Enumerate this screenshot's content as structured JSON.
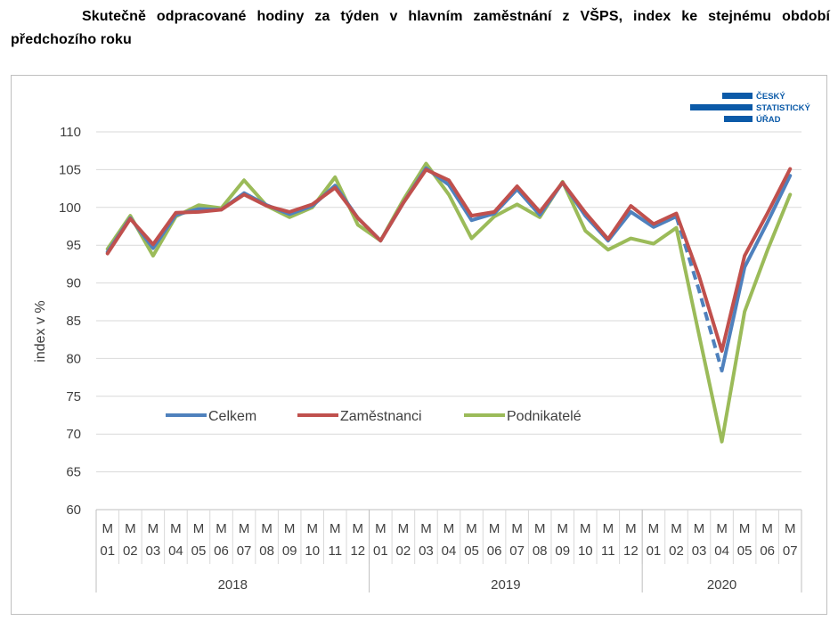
{
  "title": "Skutečně odpracované hodiny za týden v hlavním zaměstnání z VŠPS, index ke stejnému období předchozího roku",
  "logo": {
    "lines": [
      "ČESKÝ",
      "STATISTICKÝ",
      "ÚŘAD"
    ],
    "color": "#0b5aa8"
  },
  "chart_data": {
    "type": "line",
    "ylabel": "index v %",
    "ylim": [
      60,
      110
    ],
    "yticks": [
      60,
      65,
      70,
      75,
      80,
      85,
      90,
      95,
      100,
      105,
      110
    ],
    "grid": true,
    "legend_position": "center",
    "categories": [
      "M 01",
      "M 02",
      "M 03",
      "M 04",
      "M 05",
      "M 06",
      "M 07",
      "M 08",
      "M 09",
      "M 10",
      "M 11",
      "M 12",
      "M 01",
      "M 02",
      "M 03",
      "M 04",
      "M 05",
      "M 06",
      "M 07",
      "M 08",
      "M 09",
      "M 10",
      "M 11",
      "M 12",
      "M 01",
      "M 02",
      "M 03",
      "M 04",
      "M 05",
      "M 06",
      "M 07"
    ],
    "year_groups": [
      {
        "label": "2018",
        "count": 12
      },
      {
        "label": "2019",
        "count": 12
      },
      {
        "label": "2020",
        "count": 7
      }
    ],
    "series": [
      {
        "name": "Celkem",
        "color": "#4f81bd",
        "dashed_from_index": 25,
        "dashed_to_index": 27,
        "values": [
          94.1,
          98.6,
          94.6,
          99.0,
          99.8,
          99.7,
          101.9,
          100.3,
          99.1,
          100.2,
          102.9,
          98.6,
          95.6,
          100.6,
          105.2,
          103.0,
          98.3,
          99.2,
          102.4,
          99.0,
          103.3,
          98.9,
          95.6,
          99.4,
          97.4,
          98.8,
          89.0,
          78.4,
          92.1,
          98.0,
          104.2
        ]
      },
      {
        "name": "Zaměstnanci",
        "color": "#c0504d",
        "values": [
          93.9,
          98.5,
          95.1,
          99.3,
          99.4,
          99.7,
          101.7,
          100.2,
          99.4,
          100.4,
          102.6,
          98.6,
          95.6,
          100.6,
          105.0,
          103.6,
          98.9,
          99.4,
          102.8,
          99.4,
          103.3,
          99.3,
          95.8,
          100.2,
          97.8,
          99.2,
          90.9,
          81.0,
          93.6,
          99.2,
          105.1
        ]
      },
      {
        "name": "Podnikatelé",
        "color": "#9bbb59",
        "values": [
          94.5,
          98.9,
          93.6,
          98.8,
          100.3,
          99.9,
          103.6,
          100.2,
          98.7,
          100.0,
          104.0,
          97.7,
          95.6,
          101.0,
          105.8,
          101.7,
          95.9,
          98.8,
          100.4,
          98.7,
          103.4,
          96.9,
          94.4,
          95.9,
          95.2,
          97.3,
          83.1,
          69.0,
          86.2,
          94.3,
          101.7
        ]
      }
    ]
  }
}
